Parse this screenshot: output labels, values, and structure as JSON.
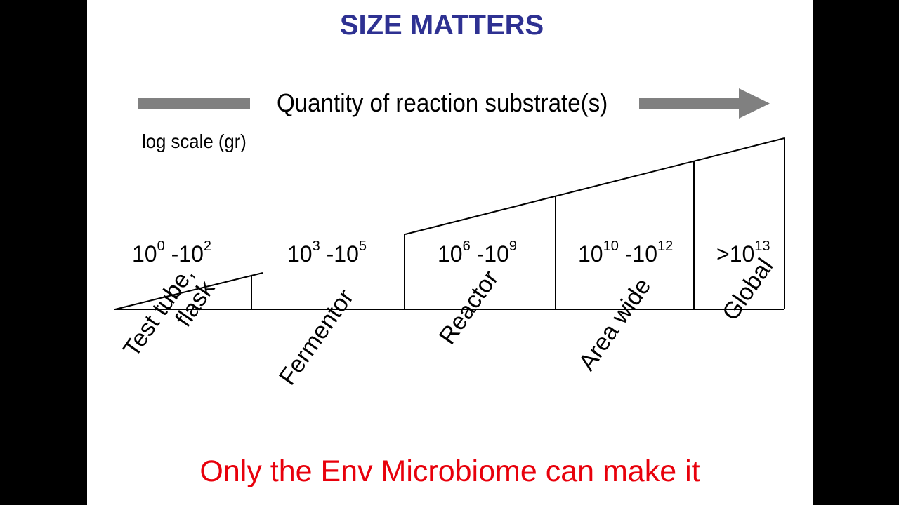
{
  "title": "SIZE MATTERS",
  "quantity_label": "Quantity of reaction substrate(s)",
  "scale_label": "log scale (gr)",
  "ranges": [
    {
      "base1": "10",
      "exp1": "0",
      "sep": " -",
      "base2": "10",
      "exp2": "2"
    },
    {
      "base1": "10",
      "exp1": "3",
      "sep": " -",
      "base2": "10",
      "exp2": "5"
    },
    {
      "base1": "10",
      "exp1": "6",
      "sep": " -",
      "base2": "10",
      "exp2": "9"
    },
    {
      "base1": "10",
      "exp1": "10",
      "sep": " -",
      "base2": "10",
      "exp2": "12"
    },
    {
      "base1": ">10",
      "exp1": "13"
    }
  ],
  "categories": [
    {
      "line1": "Test tube,",
      "line2": "flask"
    },
    {
      "line1": "Fermentor"
    },
    {
      "line1": "Reactor"
    },
    {
      "line1": "Area wide"
    },
    {
      "line1": "Global"
    }
  ],
  "footer": "Only the Env Microbiome can make it",
  "colors": {
    "title": "#2e3192",
    "footer": "#e8000b",
    "arrow": "#808080",
    "background": "#ffffff",
    "frame": "#000000"
  }
}
